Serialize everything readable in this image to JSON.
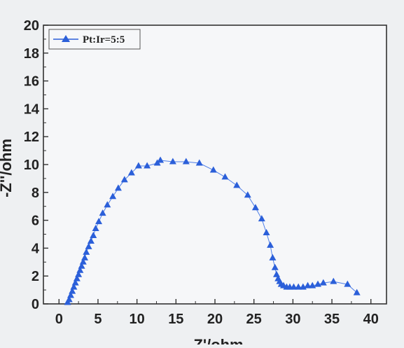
{
  "chart_data": {
    "type": "scatter",
    "title": "",
    "xlabel": "Z'/ohm",
    "ylabel": "-Z''/ohm",
    "xlim": [
      -2,
      42
    ],
    "ylim": [
      0,
      20
    ],
    "xticks": [
      0,
      5,
      10,
      15,
      20,
      25,
      30,
      35,
      40
    ],
    "yticks": [
      0,
      2,
      4,
      6,
      8,
      10,
      12,
      14,
      16,
      18,
      20
    ],
    "grid": false,
    "legend_position": "top-left",
    "series": [
      {
        "name": "Pt:Ir=5:5",
        "color": "#2b5fd9",
        "marker": "triangle",
        "x": [
          1.1,
          1.3,
          1.5,
          1.7,
          1.9,
          2.1,
          2.3,
          2.5,
          2.7,
          2.9,
          3.1,
          3.3,
          3.5,
          3.8,
          4.1,
          4.4,
          4.7,
          5.1,
          5.6,
          6.2,
          6.9,
          7.6,
          8.4,
          9.3,
          10.2,
          11.3,
          12.6,
          13.0,
          14.6,
          16.3,
          18.0,
          19.8,
          21.3,
          22.8,
          24.2,
          25.2,
          26.0,
          26.6,
          27.1,
          27.4,
          27.7,
          27.9,
          28.1,
          28.3,
          28.5,
          28.8,
          29.2,
          29.6,
          30.1,
          30.7,
          31.3,
          31.9,
          32.5,
          33.2,
          33.9,
          35.2,
          37.0,
          38.2
        ],
        "y": [
          0.1,
          0.3,
          0.6,
          0.9,
          1.2,
          1.5,
          1.8,
          2.1,
          2.4,
          2.7,
          3.0,
          3.3,
          3.7,
          4.1,
          4.5,
          4.9,
          5.4,
          5.9,
          6.5,
          7.1,
          7.7,
          8.3,
          8.9,
          9.4,
          9.9,
          9.9,
          10.1,
          10.3,
          10.2,
          10.2,
          10.1,
          9.6,
          9.1,
          8.5,
          7.8,
          6.9,
          6.1,
          5.1,
          4.2,
          3.3,
          2.6,
          2.1,
          1.8,
          1.6,
          1.4,
          1.3,
          1.2,
          1.2,
          1.2,
          1.2,
          1.2,
          1.3,
          1.3,
          1.4,
          1.5,
          1.6,
          1.4,
          0.8
        ]
      }
    ]
  }
}
